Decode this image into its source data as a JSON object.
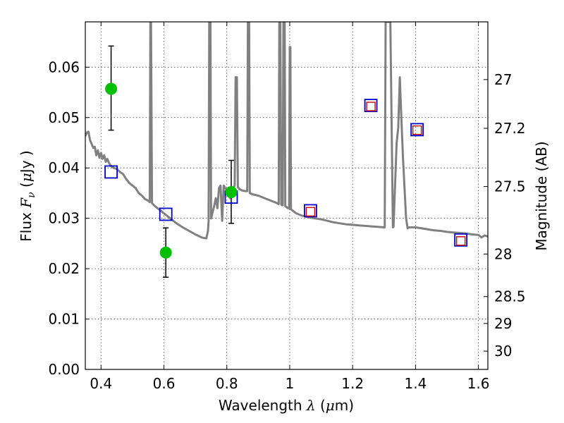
{
  "chart_data": {
    "type": "scatter",
    "xlabel": {
      "prefix": "Wavelength  ",
      "symbol": "λ",
      "suffix": " (",
      "unit_symbol": "μ",
      "unit_suffix": "m)"
    },
    "ylabel": {
      "prefix": "Flux  ",
      "symbol": "F",
      "subscript": "ν",
      "suffix": "  (",
      "unit_symbol": "μ",
      "unit_suffix": "Jy )"
    },
    "y2label": "Magnitude (AB)",
    "xlim": [
      0.35,
      1.63
    ],
    "ylim": [
      0.0,
      0.069
    ],
    "x_ticks": [
      0.4,
      0.6,
      0.8,
      1.0,
      1.2,
      1.4,
      1.6
    ],
    "x_tick_labels": [
      "0.4",
      "0.6",
      "0.8",
      "1",
      "1.2",
      "1.4",
      "1.6"
    ],
    "y_ticks": [
      0.0,
      0.01,
      0.02,
      0.03,
      0.04,
      0.05,
      0.06
    ],
    "y_tick_labels": [
      "0.00",
      "0.01",
      "0.02",
      "0.03",
      "0.04",
      "0.05",
      "0.06"
    ],
    "y2_ticks": [
      27,
      27.2,
      27.5,
      28,
      28.5,
      29,
      30
    ],
    "y2_tick_labels": [
      "27",
      "27.2",
      "27.5",
      "28",
      "28.5",
      "29",
      "30"
    ],
    "grid": true,
    "model_spectrum": {
      "color": "#808080",
      "points": [
        [
          0.35,
          0.0463
        ],
        [
          0.355,
          0.047
        ],
        [
          0.36,
          0.0472
        ],
        [
          0.365,
          0.0455
        ],
        [
          0.37,
          0.0448
        ],
        [
          0.375,
          0.044
        ],
        [
          0.38,
          0.0442
        ],
        [
          0.385,
          0.0425
        ],
        [
          0.39,
          0.0435
        ],
        [
          0.395,
          0.042
        ],
        [
          0.4,
          0.043
        ],
        [
          0.405,
          0.0418
        ],
        [
          0.41,
          0.0425
        ],
        [
          0.415,
          0.0412
        ],
        [
          0.42,
          0.0418
        ],
        [
          0.425,
          0.041
        ],
        [
          0.43,
          0.0405
        ],
        [
          0.44,
          0.04
        ],
        [
          0.45,
          0.0398
        ],
        [
          0.46,
          0.0392
        ],
        [
          0.47,
          0.0388
        ],
        [
          0.48,
          0.0378
        ],
        [
          0.49,
          0.037
        ],
        [
          0.5,
          0.0365
        ],
        [
          0.51,
          0.036
        ],
        [
          0.52,
          0.035
        ],
        [
          0.53,
          0.0345
        ],
        [
          0.54,
          0.0338
        ],
        [
          0.55,
          0.0335
        ],
        [
          0.555,
          0.0332
        ],
        [
          0.557,
          0.069
        ],
        [
          0.559,
          0.069
        ],
        [
          0.562,
          0.033
        ],
        [
          0.57,
          0.0325
        ],
        [
          0.58,
          0.032
        ],
        [
          0.6,
          0.031
        ],
        [
          0.62,
          0.03
        ],
        [
          0.64,
          0.029
        ],
        [
          0.66,
          0.0282
        ],
        [
          0.68,
          0.0275
        ],
        [
          0.7,
          0.0268
        ],
        [
          0.72,
          0.0262
        ],
        [
          0.735,
          0.026
        ],
        [
          0.74,
          0.0275
        ],
        [
          0.742,
          0.0295
        ],
        [
          0.744,
          0.069
        ],
        [
          0.748,
          0.069
        ],
        [
          0.75,
          0.03
        ],
        [
          0.76,
          0.0325
        ],
        [
          0.765,
          0.034
        ],
        [
          0.77,
          0.032
        ],
        [
          0.775,
          0.036
        ],
        [
          0.78,
          0.0365
        ],
        [
          0.785,
          0.0295
        ],
        [
          0.79,
          0.0365
        ],
        [
          0.8,
          0.0355
        ],
        [
          0.805,
          0.036
        ],
        [
          0.808,
          0.035
        ],
        [
          0.81,
          0.034
        ],
        [
          0.812,
          0.0355
        ],
        [
          0.82,
          0.036
        ],
        [
          0.825,
          0.0365
        ],
        [
          0.828,
          0.058
        ],
        [
          0.832,
          0.058
        ],
        [
          0.835,
          0.0362
        ],
        [
          0.84,
          0.0358
        ],
        [
          0.85,
          0.0355
        ],
        [
          0.86,
          0.0354
        ],
        [
          0.865,
          0.0354
        ],
        [
          0.867,
          0.069
        ],
        [
          0.871,
          0.069
        ],
        [
          0.873,
          0.035
        ],
        [
          0.88,
          0.0348
        ],
        [
          0.9,
          0.0345
        ],
        [
          0.92,
          0.034
        ],
        [
          0.94,
          0.0335
        ],
        [
          0.96,
          0.033
        ],
        [
          0.965,
          0.0328
        ],
        [
          0.967,
          0.069
        ],
        [
          0.97,
          0.069
        ],
        [
          0.973,
          0.0328
        ],
        [
          0.975,
          0.0326
        ],
        [
          0.978,
          0.0326
        ],
        [
          0.98,
          0.069
        ],
        [
          0.984,
          0.069
        ],
        [
          0.986,
          0.0324
        ],
        [
          0.99,
          0.0322
        ],
        [
          0.995,
          0.032
        ],
        [
          0.998,
          0.032
        ],
        [
          1.0,
          0.064
        ],
        [
          1.002,
          0.064
        ],
        [
          1.004,
          0.0318
        ],
        [
          1.01,
          0.0315
        ],
        [
          1.02,
          0.031
        ],
        [
          1.04,
          0.0305
        ],
        [
          1.06,
          0.0302
        ],
        [
          1.08,
          0.03
        ],
        [
          1.1,
          0.0298
        ],
        [
          1.12,
          0.0295
        ],
        [
          1.14,
          0.0292
        ],
        [
          1.16,
          0.029
        ],
        [
          1.18,
          0.0288
        ],
        [
          1.2,
          0.0287
        ],
        [
          1.22,
          0.0286
        ],
        [
          1.24,
          0.0285
        ],
        [
          1.26,
          0.0284
        ],
        [
          1.28,
          0.0283
        ],
        [
          1.3,
          0.0282
        ],
        [
          1.302,
          0.0282
        ],
        [
          1.305,
          0.069
        ],
        [
          1.32,
          0.069
        ],
        [
          1.328,
          0.0282
        ],
        [
          1.33,
          0.0283
        ],
        [
          1.34,
          0.045
        ],
        [
          1.345,
          0.048
        ],
        [
          1.35,
          0.058
        ],
        [
          1.355,
          0.05
        ],
        [
          1.36,
          0.042
        ],
        [
          1.37,
          0.03
        ],
        [
          1.375,
          0.028
        ],
        [
          1.38,
          0.0282
        ],
        [
          1.4,
          0.0282
        ],
        [
          1.42,
          0.028
        ],
        [
          1.44,
          0.0278
        ],
        [
          1.46,
          0.0276
        ],
        [
          1.48,
          0.0275
        ],
        [
          1.5,
          0.0273
        ],
        [
          1.52,
          0.0272
        ],
        [
          1.54,
          0.0271
        ],
        [
          1.56,
          0.027
        ],
        [
          1.58,
          0.0268
        ],
        [
          1.6,
          0.0267
        ],
        [
          1.61,
          0.0262
        ],
        [
          1.62,
          0.0266
        ],
        [
          1.63,
          0.0264
        ]
      ]
    },
    "observed_points": {
      "color": "#00c000",
      "points": [
        {
          "x": 0.432,
          "y": 0.0557,
          "y_low": 0.0475,
          "y_high": 0.0642
        },
        {
          "x": 0.606,
          "y": 0.0232,
          "y_low": 0.0183,
          "y_high": 0.0281
        },
        {
          "x": 0.814,
          "y": 0.0352,
          "y_low": 0.029,
          "y_high": 0.0415
        }
      ]
    },
    "model_photometry_blue": {
      "color": "#0000cc",
      "points": [
        {
          "x": 0.432,
          "y": 0.0392
        },
        {
          "x": 0.606,
          "y": 0.0308
        },
        {
          "x": 0.814,
          "y": 0.0342
        },
        {
          "x": 1.066,
          "y": 0.0315
        },
        {
          "x": 1.258,
          "y": 0.0524
        },
        {
          "x": 1.405,
          "y": 0.0476
        },
        {
          "x": 1.544,
          "y": 0.0257
        }
      ]
    },
    "model_photometry_red": {
      "color": "#cc0000",
      "points": [
        {
          "x": 1.066,
          "y": 0.0313
        },
        {
          "x": 1.258,
          "y": 0.0522
        },
        {
          "x": 1.405,
          "y": 0.0475
        },
        {
          "x": 1.544,
          "y": 0.0255
        }
      ]
    }
  }
}
